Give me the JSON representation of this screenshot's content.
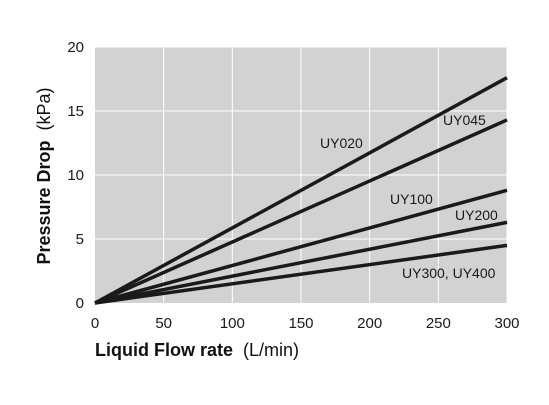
{
  "chart_data": {
    "type": "line",
    "title": "",
    "xlabel": {
      "main": "Liquid Flow rate",
      "unit": "(L/min)"
    },
    "ylabel": {
      "main": "Pressure Drop",
      "unit": "(kPa)"
    },
    "xlim": [
      0,
      300
    ],
    "ylim": [
      0,
      20
    ],
    "xticks": [
      0,
      50,
      100,
      150,
      200,
      250,
      300
    ],
    "yticks": [
      0,
      5,
      10,
      15,
      20
    ],
    "grid": true,
    "legend": "inline-labels",
    "colors": {
      "plot_background": "#d2d2d2",
      "grid": "#ffffff",
      "line": "#1a1a1a"
    },
    "series": [
      {
        "name": "UY020",
        "x": [
          0,
          300
        ],
        "y": [
          0,
          17.6
        ]
      },
      {
        "name": "UY045",
        "x": [
          0,
          300
        ],
        "y": [
          0,
          14.3
        ]
      },
      {
        "name": "UY100",
        "x": [
          0,
          300
        ],
        "y": [
          0,
          8.8
        ]
      },
      {
        "name": "UY200",
        "x": [
          0,
          300
        ],
        "y": [
          0,
          6.3
        ]
      },
      {
        "name": "UY300, UY400",
        "x": [
          0,
          300
        ],
        "y": [
          0,
          4.5
        ]
      }
    ]
  }
}
